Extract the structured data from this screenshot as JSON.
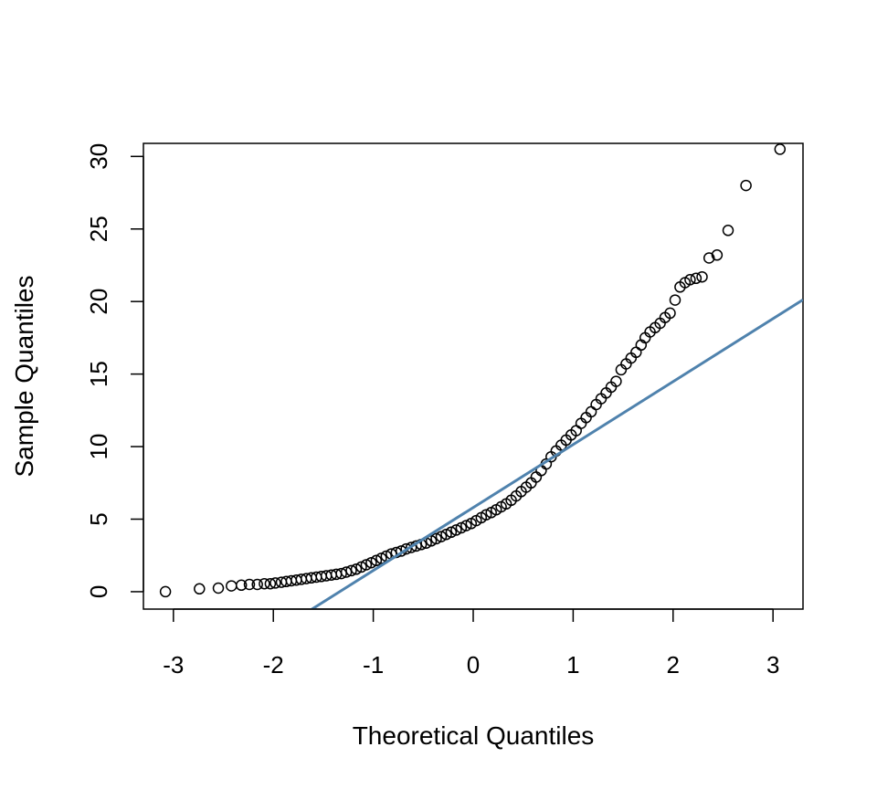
{
  "chart_data": {
    "type": "scatter",
    "title": "",
    "xlabel": "Theoretical Quantiles",
    "ylabel": "Sample Quantiles",
    "xlim": [
      -3.3,
      3.3
    ],
    "ylim": [
      -1.2,
      30.9
    ],
    "x_ticks": [
      -3,
      -2,
      -1,
      0,
      1,
      2,
      3
    ],
    "y_ticks": [
      0,
      5,
      10,
      15,
      20,
      25,
      30
    ],
    "x_tick_labels": [
      "-3",
      "-2",
      "-1",
      "0",
      "1",
      "2",
      "3"
    ],
    "y_tick_labels": [
      "0",
      "5",
      "10",
      "15",
      "20",
      "25",
      "30"
    ],
    "grid": false,
    "legend": "none",
    "series": [
      {
        "kind": "points",
        "marker": "open-circle",
        "color": "#000000",
        "x": [
          -3.08,
          -2.74,
          -2.55,
          -2.42,
          -2.32,
          -2.24,
          -2.16,
          -2.09,
          -2.03,
          -1.98,
          -1.92,
          -1.87,
          -1.82,
          -1.77,
          -1.72,
          -1.67,
          -1.62,
          -1.57,
          -1.52,
          -1.47,
          -1.42,
          -1.37,
          -1.32,
          -1.27,
          -1.22,
          -1.17,
          -1.12,
          -1.07,
          -1.02,
          -0.97,
          -0.92,
          -0.87,
          -0.82,
          -0.77,
          -0.72,
          -0.67,
          -0.62,
          -0.57,
          -0.52,
          -0.47,
          -0.42,
          -0.37,
          -0.32,
          -0.27,
          -0.22,
          -0.17,
          -0.12,
          -0.07,
          -0.02,
          0.03,
          0.08,
          0.13,
          0.18,
          0.23,
          0.28,
          0.33,
          0.38,
          0.43,
          0.48,
          0.53,
          0.58,
          0.63,
          0.68,
          0.73,
          0.78,
          0.83,
          0.88,
          0.93,
          0.98,
          1.03,
          1.08,
          1.13,
          1.18,
          1.23,
          1.28,
          1.33,
          1.38,
          1.43,
          1.48,
          1.53,
          1.58,
          1.63,
          1.68,
          1.72,
          1.77,
          1.82,
          1.87,
          1.92,
          1.97,
          2.02,
          2.07,
          2.12,
          2.17,
          2.23,
          2.29,
          2.36,
          2.44,
          2.55,
          2.73,
          3.07
        ],
        "y": [
          0.0,
          0.2,
          0.25,
          0.4,
          0.45,
          0.5,
          0.5,
          0.55,
          0.55,
          0.6,
          0.65,
          0.7,
          0.75,
          0.8,
          0.85,
          0.9,
          0.95,
          1.0,
          1.05,
          1.1,
          1.15,
          1.2,
          1.25,
          1.35,
          1.45,
          1.55,
          1.7,
          1.85,
          2.0,
          2.15,
          2.3,
          2.45,
          2.6,
          2.7,
          2.8,
          2.95,
          3.05,
          3.15,
          3.25,
          3.35,
          3.5,
          3.65,
          3.8,
          3.95,
          4.1,
          4.25,
          4.4,
          4.55,
          4.7,
          4.9,
          5.1,
          5.3,
          5.45,
          5.65,
          5.85,
          6.05,
          6.3,
          6.6,
          6.9,
          7.2,
          7.5,
          7.9,
          8.35,
          8.8,
          9.3,
          9.7,
          10.1,
          10.45,
          10.8,
          11.1,
          11.6,
          12.0,
          12.4,
          12.9,
          13.3,
          13.7,
          14.1,
          14.5,
          15.3,
          15.7,
          16.1,
          16.5,
          17.0,
          17.5,
          17.9,
          18.2,
          18.5,
          18.9,
          19.2,
          20.1,
          21.0,
          21.3,
          21.5,
          21.6,
          21.7,
          23.0,
          23.2,
          24.9,
          28.0,
          30.5
        ]
      },
      {
        "kind": "reference-line",
        "color": "#4f82ad",
        "intercept": 5.8,
        "slope": 4.34
      }
    ]
  }
}
